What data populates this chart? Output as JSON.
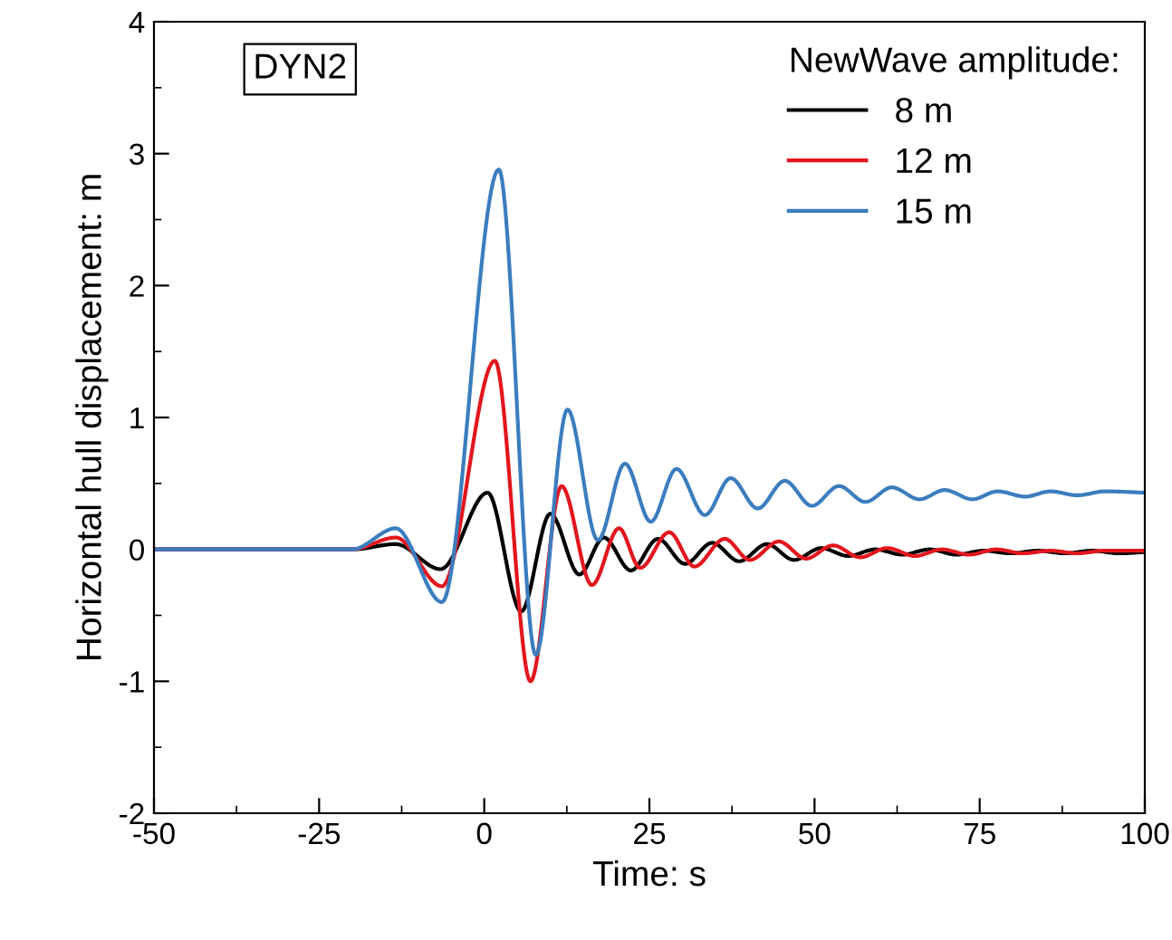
{
  "chart_data": {
    "type": "line",
    "xlabel": "Time: s",
    "ylabel": "Horizontal hull displacement: m",
    "legend_title": "NewWave amplitude:",
    "legend": "top right",
    "annotations": [
      "DYN2"
    ],
    "grid": false,
    "marker": "none",
    "line_style": "solid",
    "xlim": [
      -50,
      100
    ],
    "xticks": [
      -50,
      -25,
      0,
      25,
      50,
      75,
      100
    ],
    "ylim": [
      -2,
      4
    ],
    "yticks": [
      -2,
      -1,
      0,
      1,
      2,
      3,
      4
    ],
    "series": [
      {
        "name": "8 m",
        "color": "#000000",
        "x": [
          -50,
          -25,
          -20,
          -13.4,
          -6.6,
          0.5,
          5.6,
          10.0,
          14.4,
          18.1,
          22.2,
          26.3,
          30.4,
          34.5,
          38.6,
          42.8,
          46.9,
          51.0,
          55.1,
          59.2,
          63.3,
          67.4,
          71.5,
          75.6,
          79.7,
          83.8,
          87.9,
          92.0,
          96.1,
          100
        ],
        "values": [
          0,
          0,
          0,
          0.04,
          -0.15,
          0.43,
          -0.47,
          0.27,
          -0.19,
          0.09,
          -0.16,
          0.08,
          -0.11,
          0.05,
          -0.09,
          0.04,
          -0.08,
          0.01,
          -0.05,
          0,
          -0.04,
          0,
          -0.04,
          -0.01,
          -0.03,
          -0.01,
          -0.03,
          -0.01,
          -0.03,
          -0.02
        ]
      },
      {
        "name": "12 m",
        "color": "#e3161d",
        "x": [
          -50,
          -25,
          -20,
          -13.4,
          -6.4,
          1.6,
          7.0,
          11.7,
          16.3,
          20.4,
          23.6,
          28.0,
          31.8,
          36.4,
          40.2,
          44.6,
          48.7,
          52.8,
          56.9,
          61.0,
          65.2,
          69.3,
          73.4,
          77.5,
          81.6,
          85.7,
          89.8,
          93.9,
          100
        ],
        "values": [
          0,
          0,
          0,
          0.09,
          -0.28,
          1.43,
          -1.0,
          0.48,
          -0.27,
          0.16,
          -0.14,
          0.13,
          -0.13,
          0.08,
          -0.08,
          0.06,
          -0.07,
          0.03,
          -0.06,
          0.01,
          -0.05,
          0,
          -0.04,
          0,
          -0.03,
          -0.01,
          -0.03,
          -0.01,
          -0.01
        ]
      },
      {
        "name": "15 m",
        "color": "#3b7dbf",
        "x": [
          -50,
          -25,
          -20,
          -13.4,
          -6.4,
          2.2,
          7.8,
          12.6,
          17.2,
          21.3,
          25.2,
          29.1,
          33.4,
          37.3,
          41.4,
          45.5,
          49.6,
          53.7,
          57.7,
          61.7,
          65.9,
          69.7,
          73.9,
          77.7,
          81.9,
          85.7,
          89.8,
          94.0,
          100
        ],
        "values": [
          0,
          0,
          0,
          0.16,
          -0.4,
          2.88,
          -0.8,
          1.06,
          0.07,
          0.65,
          0.21,
          0.61,
          0.26,
          0.54,
          0.31,
          0.52,
          0.33,
          0.48,
          0.36,
          0.47,
          0.38,
          0.45,
          0.38,
          0.44,
          0.4,
          0.44,
          0.41,
          0.44,
          0.43
        ]
      }
    ]
  }
}
